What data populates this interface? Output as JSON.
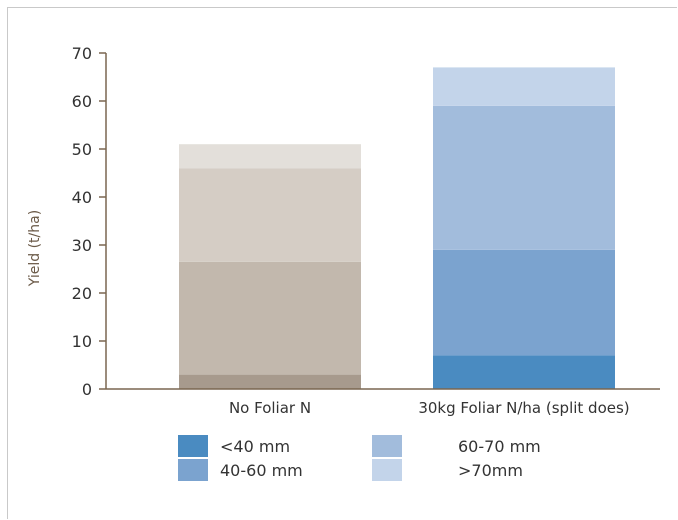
{
  "chart_data": {
    "type": "bar",
    "stacked": true,
    "categories": [
      "No Foliar N",
      "30kg Foliar N/ha (split does)"
    ],
    "ylabel": "Yield (t/ha)",
    "ylim": [
      0,
      70
    ],
    "yticks": [
      "0",
      "10",
      "20",
      "30",
      "40",
      "50",
      "60",
      "70"
    ],
    "grid": false,
    "legend_position": "bottom",
    "series": [
      {
        "name": "<40 mm",
        "values": [
          3,
          7
        ],
        "colors": [
          "#a79a8d",
          "#4a8bc1"
        ]
      },
      {
        "name": "40-60 mm",
        "values": [
          23.5,
          22
        ],
        "colors": [
          "#c2b8ad",
          "#7ba3cf"
        ]
      },
      {
        "name": "60-70 mm",
        "values": [
          19.5,
          30
        ],
        "colors": [
          "#d5cdc5",
          "#a2bcdc"
        ]
      },
      {
        "name": ">70mm",
        "values": [
          5,
          8
        ],
        "colors": [
          "#e3dfda",
          "#c3d4ea"
        ]
      }
    ],
    "legend_colors": [
      "#4a8bc1",
      "#7ba3cf",
      "#a2bcdc",
      "#c3d4ea"
    ],
    "axis_color": "#7a6650"
  }
}
